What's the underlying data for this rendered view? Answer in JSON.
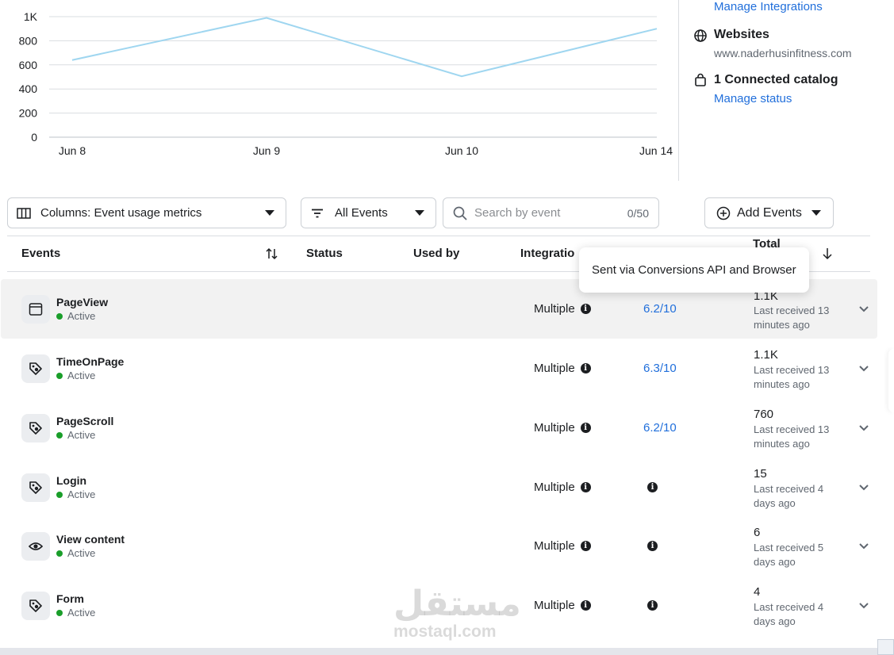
{
  "chart_data": {
    "type": "line",
    "categories": [
      "Jun 8",
      "Jun 9",
      "Jun 10",
      "Jun 14"
    ],
    "x_tick_labels": [
      "Jun 8",
      "Jun 9",
      "Jun 10",
      "Jun 14"
    ],
    "series": [
      {
        "values": [
          640,
          990,
          505,
          900
        ]
      }
    ],
    "ylim": [
      0,
      1000
    ],
    "y_ticks": [
      0,
      200,
      400,
      600,
      800,
      1000
    ],
    "y_tick_labels": [
      "0",
      "200",
      "400",
      "600",
      "800",
      "1K"
    ],
    "grid": true,
    "line_color": "#9fd6f0"
  },
  "right_panel": {
    "manage_integrations": "Manage Integrations",
    "websites_title": "Websites",
    "website_url": "www.naderhusinfitness.com",
    "catalog_title": "1 Connected catalog",
    "manage_status": "Manage status"
  },
  "toolbar": {
    "columns_label": "Columns: Event usage metrics",
    "filter_label": "All Events",
    "search_placeholder": "Search by event",
    "search_count": "0/50",
    "add_events_label": "Add Events"
  },
  "table": {
    "headers": {
      "events": "Events",
      "status": "Status",
      "used_by": "Used by",
      "integration": "Integratio",
      "total": "Total"
    },
    "tooltip": "Sent via Conversions API and Browser",
    "rows": [
      {
        "name": "PageView",
        "status": "Active",
        "icon": "browser-window-icon",
        "integration": "Multiple",
        "emq": "6.2/10",
        "total": "1.1K",
        "last_received": "Last received 13 minutes ago"
      },
      {
        "name": "TimeOnPage",
        "status": "Active",
        "icon": "tag-icon",
        "integration": "Multiple",
        "emq": "6.3/10",
        "total": "1.1K",
        "last_received": "Last received 13 minutes ago"
      },
      {
        "name": "PageScroll",
        "status": "Active",
        "icon": "tag-icon",
        "integration": "Multiple",
        "emq": "6.2/10",
        "total": "760",
        "last_received": "Last received 13 minutes ago"
      },
      {
        "name": "Login",
        "status": "Active",
        "icon": "tag-icon",
        "integration": "Multiple",
        "emq": "",
        "total": "15",
        "last_received": "Last received 4 days ago"
      },
      {
        "name": "View content",
        "status": "Active",
        "icon": "eye-icon",
        "integration": "Multiple",
        "emq": "",
        "total": "6",
        "last_received": "Last received 5 days ago"
      },
      {
        "name": "Form",
        "status": "Active",
        "icon": "tag-icon",
        "integration": "Multiple",
        "emq": "",
        "total": "4",
        "last_received": "Last received 4 days ago"
      }
    ]
  },
  "watermark": {
    "arabic": "مستقل",
    "latin": "mostaql.com"
  },
  "colors": {
    "link": "#216fdb",
    "active_dot": "#1a9e2a",
    "chart_line": "#9fd6f0"
  }
}
